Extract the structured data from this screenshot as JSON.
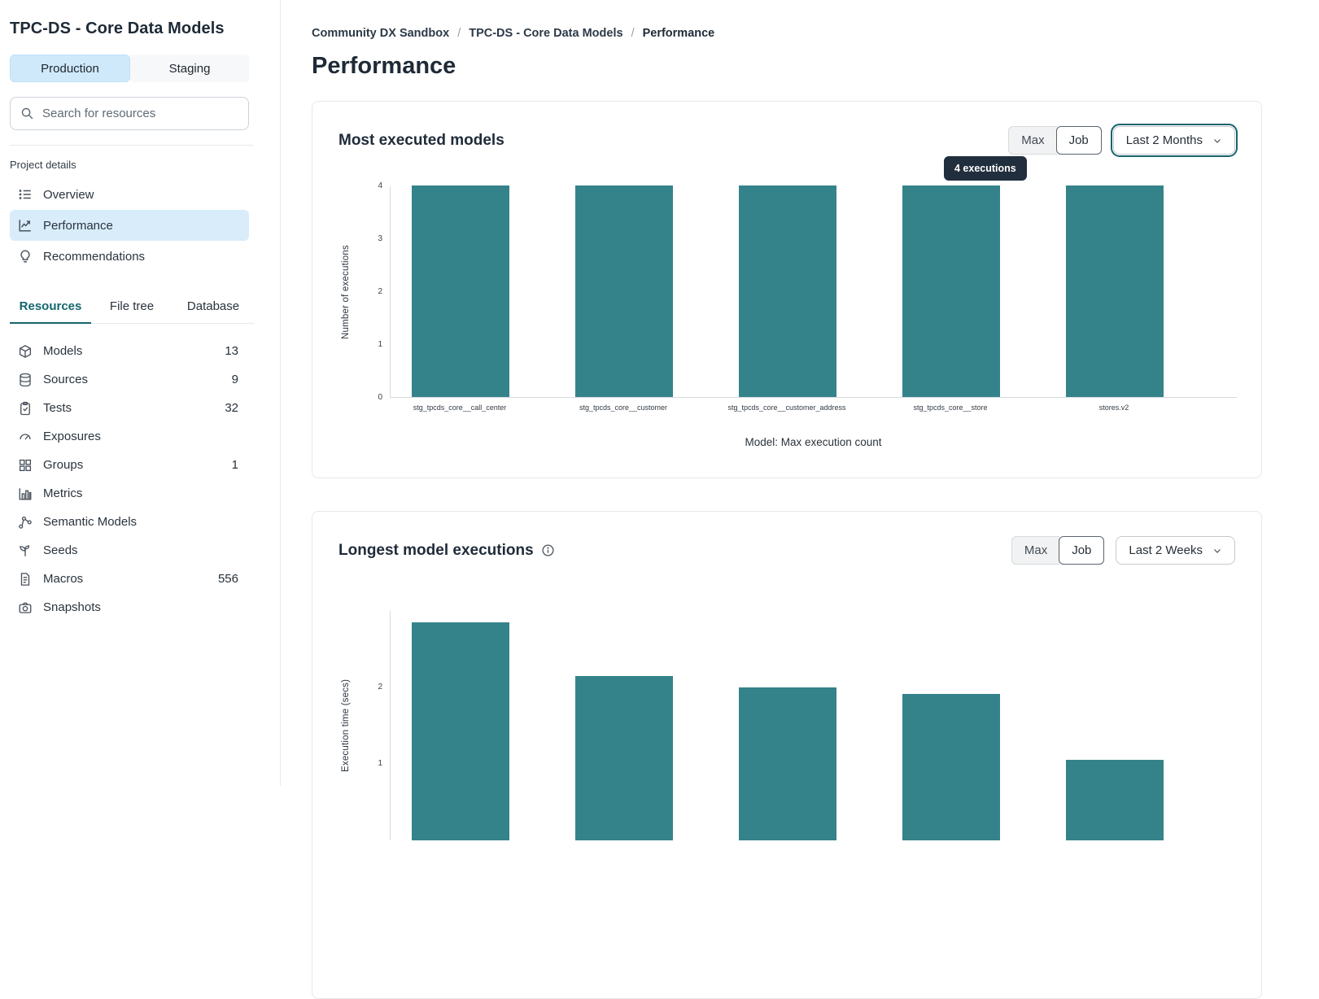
{
  "sidebar": {
    "title": "TPC-DS - Core Data Models",
    "env_toggle": {
      "production": "Production",
      "staging": "Staging",
      "selected": "Production"
    },
    "search": {
      "placeholder": "Search for resources"
    },
    "project_details": {
      "label": "Project details",
      "items": [
        {
          "label": "Overview",
          "icon": "list-icon",
          "active": false
        },
        {
          "label": "Performance",
          "icon": "line-chart-icon",
          "active": true
        },
        {
          "label": "Recommendations",
          "icon": "lightbulb-icon",
          "active": false
        }
      ]
    },
    "tabs": [
      {
        "label": "Resources",
        "active": true
      },
      {
        "label": "File tree",
        "active": false
      },
      {
        "label": "Database",
        "active": false
      }
    ],
    "resources": [
      {
        "label": "Models",
        "icon": "cube-icon",
        "count": "13"
      },
      {
        "label": "Sources",
        "icon": "database-icon",
        "count": "9"
      },
      {
        "label": "Tests",
        "icon": "clipboard-icon",
        "count": "32"
      },
      {
        "label": "Exposures",
        "icon": "gauge-icon",
        "count": ""
      },
      {
        "label": "Groups",
        "icon": "grid-icon",
        "count": "1"
      },
      {
        "label": "Metrics",
        "icon": "bar-chart-icon",
        "count": ""
      },
      {
        "label": "Semantic Models",
        "icon": "semantic-model-icon",
        "count": ""
      },
      {
        "label": "Seeds",
        "icon": "seed-icon",
        "count": ""
      },
      {
        "label": "Macros",
        "icon": "document-icon",
        "count": "556"
      },
      {
        "label": "Snapshots",
        "icon": "camera-icon",
        "count": ""
      }
    ]
  },
  "breadcrumb": {
    "items": [
      "Community DX Sandbox",
      "TPC-DS - Core Data Models",
      "Performance"
    ],
    "separator": "/"
  },
  "page_title": "Performance",
  "cards": [
    {
      "title": "Most executed models",
      "controls": {
        "max": "Max",
        "job": "Job",
        "selected": "Job",
        "range": "Last 2 Months",
        "range_focused": true
      },
      "tooltip": "4 executions"
    },
    {
      "title": "Longest model executions",
      "has_info_icon": true,
      "controls": {
        "max": "Max",
        "job": "Job",
        "selected": "Job",
        "range": "Last 2 Weeks",
        "range_focused": false
      }
    }
  ],
  "chart_data": [
    {
      "type": "bar",
      "title": "Most executed models",
      "categories": [
        "stg_tpcds_core__call_center",
        "stg_tpcds_core__customer",
        "stg_tpcds_core__customer_address",
        "stg_tpcds_core__store",
        "stores.v2"
      ],
      "values": [
        4,
        4,
        4,
        4,
        4
      ],
      "ylabel": "Number of executions",
      "xlabel": "Model: Max execution count",
      "yticks": [
        0,
        1,
        2,
        3,
        4
      ],
      "ylim": [
        0,
        4
      ],
      "bar_color": "#35838a",
      "grid": false,
      "tooltip": {
        "text": "4 executions",
        "bar_index": 3
      }
    },
    {
      "type": "bar",
      "title": "Longest model executions",
      "categories": [
        "",
        "",
        "",
        "",
        ""
      ],
      "values": [
        2.85,
        2.15,
        2.0,
        1.92,
        1.05
      ],
      "ylabel": "Execution time (secs)",
      "xlabel": "",
      "yticks": [
        1,
        2
      ],
      "ylim": [
        0,
        3
      ],
      "bar_color": "#35838a",
      "grid": false,
      "clipped_at_viewport_bottom": true
    }
  ],
  "colors": {
    "bar_teal": "#35838a",
    "active_tab_teal": "#14666d",
    "focus_ring_teal": "#17646b",
    "selected_blue_bg": "#d8ecfa",
    "production_blue_bg": "#cfe9fb",
    "tooltip_bg": "#212e3e",
    "border_gray": "#e6e8eb"
  }
}
